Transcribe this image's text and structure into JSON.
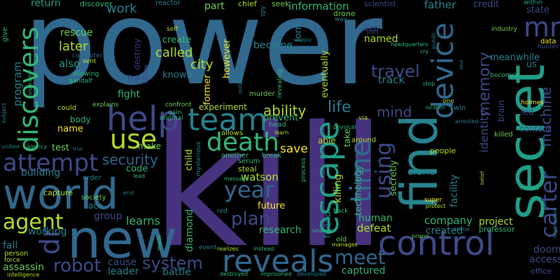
{
  "palette": {
    "background": "#000000",
    "dark_purple": "#46327e",
    "purple": "#3e4a89",
    "blue": "#31688e",
    "teal": "#26828e",
    "green_teal": "#1f9e89",
    "green": "#35b779",
    "light_green": "#6ece58",
    "yellow_green": "#b5de2b",
    "yellow": "#fde725"
  },
  "words": {
    "power": "power",
    "kill": "kill",
    "secret": "secret",
    "world": "world",
    "new": "new",
    "find": "find",
    "control": "control",
    "reveals": "reveals",
    "escape": "escape",
    "help": "help",
    "team": "team",
    "use": "use",
    "death": "death",
    "time": "time",
    "discovers": "discovers",
    "device": "device",
    "carter": "carter",
    "attempt": "attempt",
    "year": "year",
    "agent": "agent",
    "robot": "robot",
    "system": "system",
    "using": "using",
    "plan": "plan",
    "travel": "travel",
    "meet": "meet",
    "dr": "dr",
    "mr": "mr",
    "life": "life",
    "ability": "ability",
    "memory": "memory",
    "machine": "machine",
    "identity": "identity",
    "mind": "mind",
    "security": "security",
    "called": "called",
    "city": "city",
    "save": "save",
    "later": "later",
    "rescue": "rescue",
    "also": "also",
    "program": "program",
    "work": "work",
    "information": "information",
    "return": "return",
    "discover": "discover",
    "reactor": "reactor",
    "father": "father",
    "credit": "credit",
    "within": "within",
    "chief": "chief",
    "seek": "seek",
    "scientist": "scientist",
    "part": "part",
    "drone": "drone",
    "become": "become",
    "form": "form",
    "ceo": "ceo",
    "join": "join",
    "named": "named",
    "track": "track",
    "former": "former",
    "however": "however",
    "eventually": "eventually",
    "create": "create",
    "known": "known",
    "free": "free",
    "fight": "fight",
    "experiment": "experiment",
    "prevent": "prevent",
    "name": "name",
    "body": "body",
    "test": "test",
    "make": "make",
    "child": "child",
    "another": "another",
    "allows": "allows",
    "building": "building",
    "code": "code",
    "watson": "watson",
    "killing": "killing",
    "technology": "technology",
    "human": "human",
    "company": "company",
    "facility": "facility",
    "clone": "clone",
    "secretly": "secretly",
    "friend": "friend",
    "future": "future",
    "research": "research",
    "defeat": "defeat",
    "learns": "learns",
    "group": "group",
    "working": "working",
    "fall": "fall",
    "assassin": "assassin",
    "cause": "cause",
    "leader": "leader",
    "battle": "battle",
    "diamond": "diamond",
    "captured": "captured",
    "created": "created",
    "project": "project",
    "professor": "professor",
    "doom": "doom",
    "access": "access",
    "office": "office",
    "state": "state",
    "meanwhile": "meanwhile",
    "us": "us",
    "led": "led",
    "contact": "contact",
    "brain": "brain",
    "people": "people",
    "able": "able",
    "take": "take",
    "around": "around",
    "steal": "steal",
    "serum": "serum",
    "mysterious": "mysterious",
    "ace": "ace",
    "society": "society",
    "capture": "capture",
    "order": "order",
    "could": "could",
    "explains": "explains",
    "confront": "confront",
    "gain": "gain",
    "original": "original",
    "murder": "murder",
    "revealing": "revealing",
    "suicide": "suicide",
    "computer": "computer",
    "allowing": "allowing",
    "sent": "sent",
    "gandalf": "gandalf",
    "self": "self",
    "destroy": "destroy",
    "industry": "industry",
    "data": "data",
    "hunter": "hunter",
    "holmes": "holmes",
    "killed": "killed",
    "twin": "twin",
    "location": "location",
    "arrested": "arrested",
    "physical": "physical",
    "via": "via",
    "learn": "learn",
    "head": "head",
    "break": "break",
    "message": "message",
    "realizes": "realizes",
    "instead": "instead",
    "destroyed": "destroyed",
    "imprisoned": "imprisoned",
    "developed": "developed",
    "manages": "manages",
    "old": "old",
    "unable": "unable",
    "prison": "prison",
    "crime": "crime",
    "super": "super",
    "protect": "protect",
    "back": "back",
    "process": "process",
    "stop": "stop",
    "public": "public",
    "way": "way",
    "give": "give",
    "subject": "subject",
    "united": "united",
    "agency": "agency",
    "person": "person",
    "force": "force",
    "intelligence": "intelligence",
    "made": "made",
    "event": "event",
    "end": "end",
    "lead": "lead",
    "red": "red",
    "eggsy": "eggsy",
    "one": "one",
    "belief": "belief",
    "becomes": "becomes",
    "headquarters": "headquarters",
    "cry": "cry",
    "spy": "spy",
    "military": "military",
    "organization": "organization",
    "delivers": "delivers",
    "soul": "soul",
    "corporation": "corporation",
    "true": "true",
    "following": "following"
  }
}
